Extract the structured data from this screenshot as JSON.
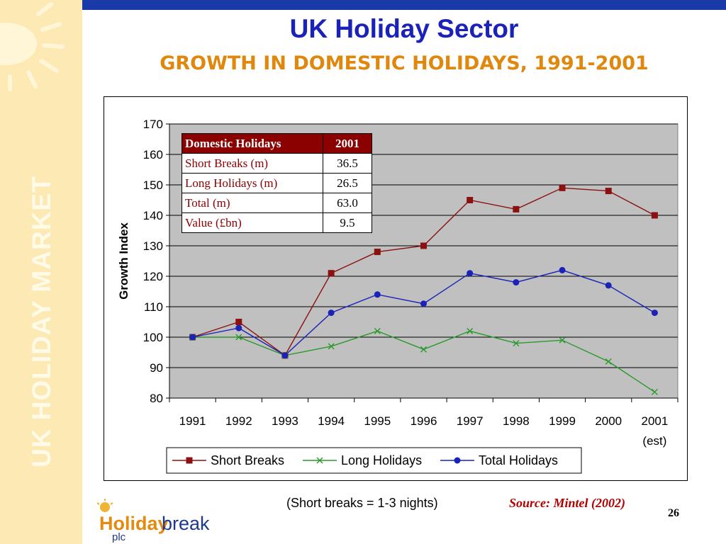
{
  "sidebar": {
    "label": "UK HOLIDAY MARKET"
  },
  "header": {
    "title": "UK Holiday Sector",
    "subtitle": "GROWTH IN DOMESTIC HOLIDAYS, 1991-2001"
  },
  "inset_table": {
    "header": [
      "Domestic Holidays",
      "2001"
    ],
    "rows": [
      [
        "Short Breaks (m)",
        "36.5"
      ],
      [
        "Long Holidays (m)",
        "26.5"
      ],
      [
        "Total (m)",
        "63.0"
      ],
      [
        "Value (£bn)",
        "9.5"
      ]
    ]
  },
  "chart_data": {
    "type": "line",
    "title": "",
    "xlabel": "",
    "ylabel": "Growth Index",
    "categories": [
      "1991",
      "1992",
      "1993",
      "1994",
      "1995",
      "1996",
      "1997",
      "1998",
      "1999",
      "2000",
      "2001"
    ],
    "last_category_note": "(est)",
    "ylim": [
      80,
      170
    ],
    "yticks": [
      80,
      90,
      100,
      110,
      120,
      130,
      140,
      150,
      160,
      170
    ],
    "grid": true,
    "legend_position": "bottom",
    "series": [
      {
        "name": "Short Breaks",
        "color": "#8b1010",
        "marker": "square",
        "values": [
          100,
          105,
          94,
          121,
          128,
          130,
          145,
          142,
          149,
          148,
          140
        ]
      },
      {
        "name": "Long Holidays",
        "color": "#2a9a2a",
        "marker": "x",
        "values": [
          100,
          100,
          94,
          97,
          102,
          96,
          102,
          98,
          99,
          92,
          82
        ]
      },
      {
        "name": "Total Holidays",
        "color": "#1a22b8",
        "marker": "circle",
        "values": [
          100,
          103,
          94,
          108,
          114,
          111,
          121,
          118,
          122,
          117,
          108
        ]
      }
    ]
  },
  "footer": {
    "note": "(Short breaks = 1-3 nights)",
    "source": "Source: Mintel (2002)",
    "page_number": "26"
  },
  "logo": {
    "word1": "Holiday",
    "word2": "break",
    "suffix": "plc"
  }
}
